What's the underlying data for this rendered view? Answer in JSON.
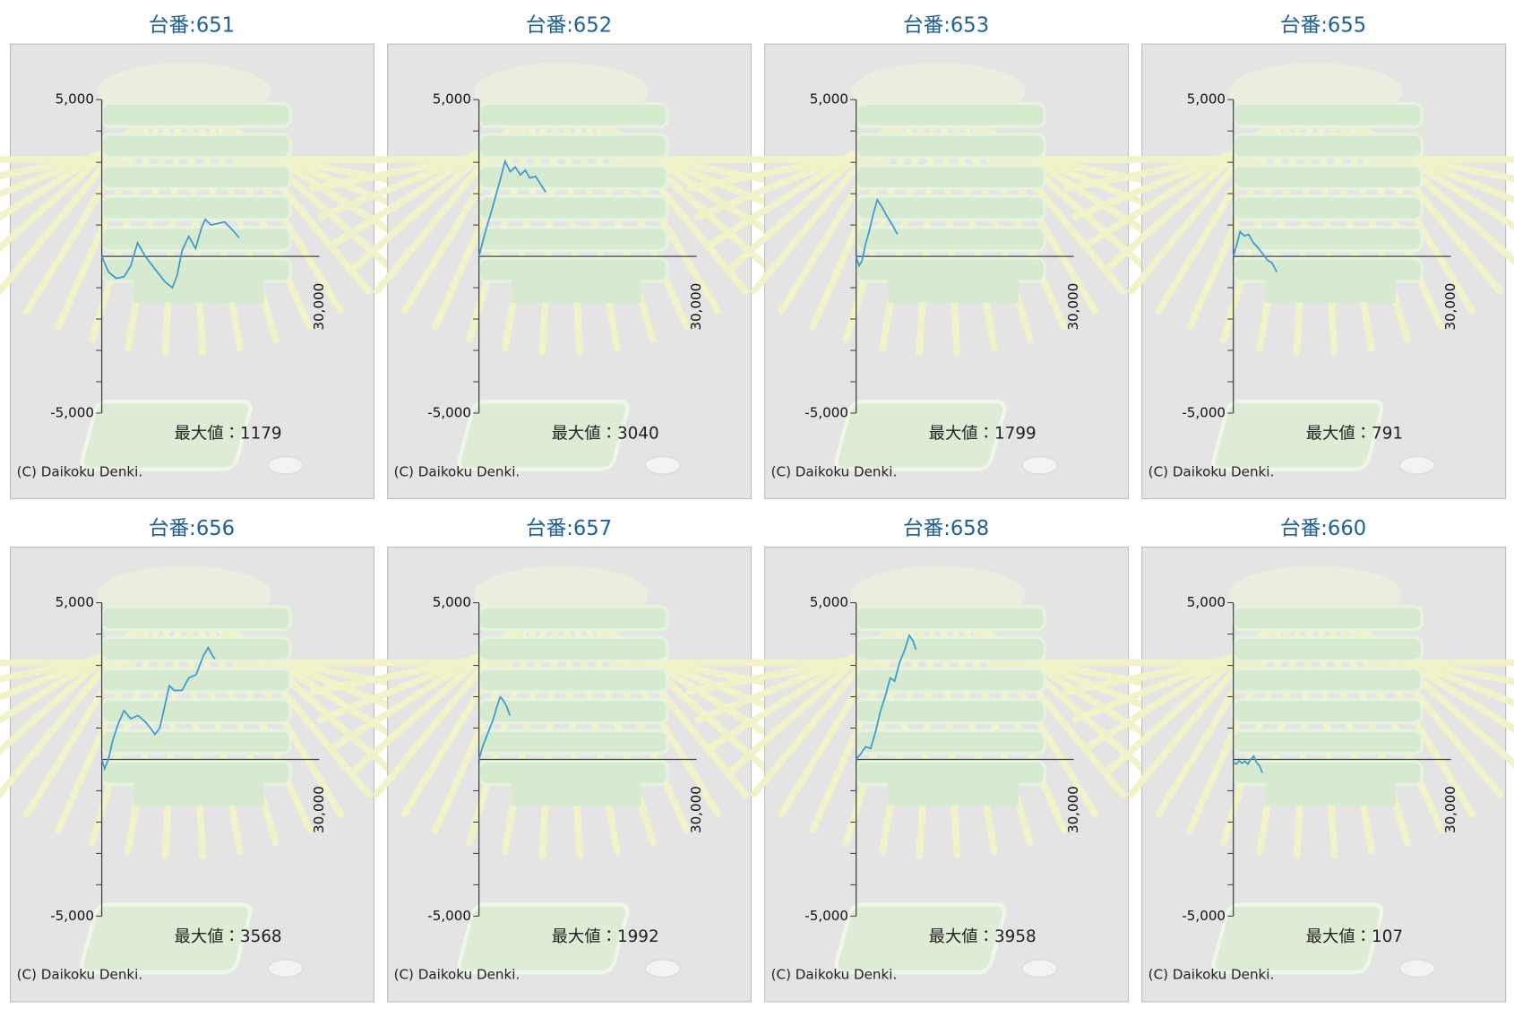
{
  "chart_data": [
    {
      "type": "line",
      "title": "台番:651",
      "annotations": [
        "最大値：1179",
        "(C) Daikoku Denki."
      ],
      "color": "#3a9ad0",
      "x": [
        0,
        930,
        2000,
        3070,
        4000,
        4930,
        6000,
        7330,
        8670,
        9730,
        10400,
        11070,
        12000,
        12930,
        13730,
        14270,
        15070,
        16000,
        16930,
        18000,
        18930
      ],
      "values": [
        0,
        -500,
        -700,
        -650,
        -300,
        430,
        0,
        -400,
        -800,
        -1000,
        -600,
        180,
        640,
        250,
        900,
        1179,
        1000,
        1050,
        1100,
        850,
        600
      ],
      "xlim": [
        0,
        30000
      ],
      "xticks": [
        {
          "value": 30000,
          "label": "30,000"
        }
      ],
      "ylim": [
        -5000,
        5000
      ],
      "yticks": [
        {
          "value": 5000,
          "label": "5,000"
        },
        {
          "value": -5000,
          "label": "-5,000"
        }
      ],
      "yticks_minor": [
        4000,
        3000,
        2000,
        1000,
        -1000,
        -2000,
        -3000,
        -4000
      ]
    },
    {
      "type": "line",
      "title": "台番:652",
      "annotations": [
        "最大値：3040",
        "(C) Daikoku Denki."
      ],
      "color": "#3a9ad0",
      "x": [
        0,
        900,
        1800,
        2400,
        3000,
        3600,
        4300,
        5000,
        5700,
        6400,
        7000,
        7800,
        8500,
        9200
      ],
      "values": [
        0,
        800,
        1500,
        2000,
        2500,
        3040,
        2700,
        2850,
        2600,
        2750,
        2500,
        2550,
        2300,
        2050
      ],
      "xlim": [
        0,
        30000
      ],
      "xticks": [
        {
          "value": 30000,
          "label": "30,000"
        }
      ],
      "ylim": [
        -5000,
        5000
      ],
      "yticks": [
        {
          "value": 5000,
          "label": "5,000"
        },
        {
          "value": -5000,
          "label": "-5,000"
        }
      ],
      "yticks_minor": [
        4000,
        3000,
        2000,
        1000,
        -1000,
        -2000,
        -3000,
        -4000
      ]
    },
    {
      "type": "line",
      "title": "台番:653",
      "annotations": [
        "最大値：1799",
        "(C) Daikoku Denki."
      ],
      "color": "#3a9ad0",
      "x": [
        0,
        400,
        800,
        1300,
        1800,
        2300,
        2900,
        3500,
        4200,
        5000,
        5700
      ],
      "values": [
        0,
        -300,
        -150,
        400,
        800,
        1300,
        1799,
        1600,
        1300,
        1000,
        700
      ],
      "xlim": [
        0,
        30000
      ],
      "xticks": [
        {
          "value": 30000,
          "label": "30,000"
        }
      ],
      "ylim": [
        -5000,
        5000
      ],
      "yticks": [
        {
          "value": 5000,
          "label": "5,000"
        },
        {
          "value": -5000,
          "label": "-5,000"
        }
      ],
      "yticks_minor": [
        4000,
        3000,
        2000,
        1000,
        -1000,
        -2000,
        -3000,
        -4000
      ]
    },
    {
      "type": "line",
      "title": "台番:655",
      "annotations": [
        "最大値：791",
        "(C) Daikoku Denki."
      ],
      "color": "#3a9ad0",
      "x": [
        0,
        500,
        930,
        1500,
        2100,
        2700,
        3300,
        4000,
        4700,
        5300,
        6000
      ],
      "values": [
        0,
        400,
        791,
        650,
        700,
        450,
        300,
        100,
        -120,
        -200,
        -500
      ],
      "xlim": [
        0,
        30000
      ],
      "xticks": [
        {
          "value": 30000,
          "label": "30,000"
        }
      ],
      "ylim": [
        -5000,
        5000
      ],
      "yticks": [
        {
          "value": 5000,
          "label": "5,000"
        },
        {
          "value": -5000,
          "label": "-5,000"
        }
      ],
      "yticks_minor": [
        4000,
        3000,
        2000,
        1000,
        -1000,
        -2000,
        -3000,
        -4000
      ]
    },
    {
      "type": "line",
      "title": "台番:656",
      "annotations": [
        "最大値：3568",
        "(C) Daikoku Denki."
      ],
      "color": "#3a9ad0",
      "x": [
        0,
        400,
        900,
        1500,
        2200,
        3070,
        4000,
        5000,
        6000,
        6700,
        7330,
        8000,
        9300,
        10000,
        11070,
        12000,
        13000,
        14000,
        14670,
        15300,
        15600
      ],
      "values": [
        0,
        -300,
        0,
        600,
        1100,
        1560,
        1300,
        1400,
        1200,
        1000,
        800,
        1000,
        2350,
        2200,
        2200,
        2600,
        2700,
        3300,
        3568,
        3300,
        3200
      ],
      "xlim": [
        0,
        30000
      ],
      "xticks": [
        {
          "value": 30000,
          "label": "30,000"
        }
      ],
      "ylim": [
        -5000,
        5000
      ],
      "yticks": [
        {
          "value": 5000,
          "label": "5,000"
        },
        {
          "value": -5000,
          "label": "-5,000"
        }
      ],
      "yticks_minor": [
        4000,
        3000,
        2000,
        1000,
        -1000,
        -2000,
        -3000,
        -4000
      ]
    },
    {
      "type": "line",
      "title": "台番:657",
      "annotations": [
        "最大値：1992",
        "(C) Daikoku Denki."
      ],
      "color": "#3a9ad0",
      "x": [
        0,
        500,
        1000,
        1500,
        2000,
        2500,
        2930,
        3300,
        3800,
        4270
      ],
      "values": [
        0,
        400,
        700,
        1000,
        1300,
        1700,
        1992,
        1900,
        1700,
        1400
      ],
      "xlim": [
        0,
        30000
      ],
      "xticks": [
        {
          "value": 30000,
          "label": "30,000"
        }
      ],
      "ylim": [
        -5000,
        5000
      ],
      "yticks": [
        {
          "value": 5000,
          "label": "5,000"
        },
        {
          "value": -5000,
          "label": "-5,000"
        }
      ],
      "yticks_minor": [
        4000,
        3000,
        2000,
        1000,
        -1000,
        -2000,
        -3000,
        -4000
      ]
    },
    {
      "type": "line",
      "title": "台番:658",
      "annotations": [
        "最大値：3958",
        "(C) Daikoku Denki."
      ],
      "color": "#3a9ad0",
      "x": [
        0,
        700,
        1300,
        2000,
        2700,
        3300,
        4000,
        4700,
        5300,
        6000,
        6700,
        7330,
        7800,
        8270
      ],
      "values": [
        0,
        200,
        400,
        350,
        900,
        1500,
        2000,
        2600,
        2500,
        3100,
        3500,
        3958,
        3800,
        3500
      ],
      "xlim": [
        0,
        30000
      ],
      "xticks": [
        {
          "value": 30000,
          "label": "30,000"
        }
      ],
      "ylim": [
        -5000,
        5000
      ],
      "yticks": [
        {
          "value": 5000,
          "label": "5,000"
        },
        {
          "value": -5000,
          "label": "-5,000"
        }
      ],
      "yticks_minor": [
        4000,
        3000,
        2000,
        1000,
        -1000,
        -2000,
        -3000,
        -4000
      ]
    },
    {
      "type": "line",
      "title": "台番:660",
      "annotations": [
        "最大値：107",
        "(C) Daikoku Denki."
      ],
      "color": "#3a9ad0",
      "x": [
        0,
        400,
        800,
        1200,
        1600,
        2000,
        2400,
        2800,
        3200,
        3600,
        4000
      ],
      "values": [
        -100,
        -150,
        -50,
        -120,
        -60,
        -150,
        0,
        107,
        -100,
        -200,
        -430
      ],
      "xlim": [
        0,
        30000
      ],
      "xticks": [
        {
          "value": 30000,
          "label": "30,000"
        }
      ],
      "ylim": [
        -5000,
        5000
      ],
      "yticks": [
        {
          "value": 5000,
          "label": "5,000"
        },
        {
          "value": -5000,
          "label": "-5,000"
        }
      ],
      "yticks_minor": [
        4000,
        3000,
        2000,
        1000,
        -1000,
        -2000,
        -3000,
        -4000
      ]
    }
  ]
}
